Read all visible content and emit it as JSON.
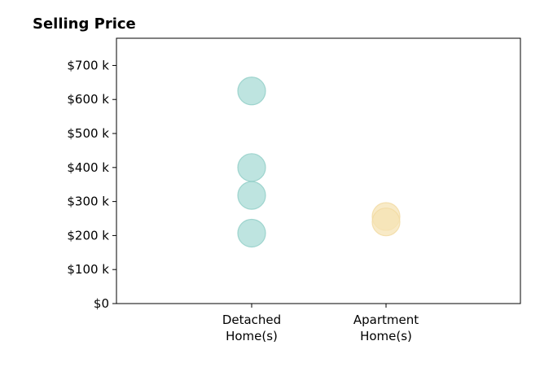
{
  "chart_data": {
    "type": "scatter",
    "title": "Selling Price",
    "xlabel": "",
    "ylabel": "",
    "categories": [
      [
        "Detached",
        "Home(s)"
      ],
      [
        "Apartment",
        "Home(s)"
      ]
    ],
    "ylim": [
      0,
      780
    ],
    "yticks": [
      0,
      100,
      200,
      300,
      400,
      500,
      600,
      700
    ],
    "ytick_labels": [
      "$0",
      "$100 k",
      "$200 k",
      "$300 k",
      "$400 k",
      "$500 k",
      "$600 k",
      "$700 k"
    ],
    "grid": false,
    "legend": "none",
    "series": [
      {
        "category_index": 0,
        "color": "#a8dbd6",
        "stroke": "#8ecdc6",
        "values": [
          625,
          400,
          318,
          207
        ]
      },
      {
        "category_index": 1,
        "color": "#f6e3b4",
        "stroke": "#f1d9a0",
        "values": [
          256,
          240
        ]
      }
    ]
  }
}
